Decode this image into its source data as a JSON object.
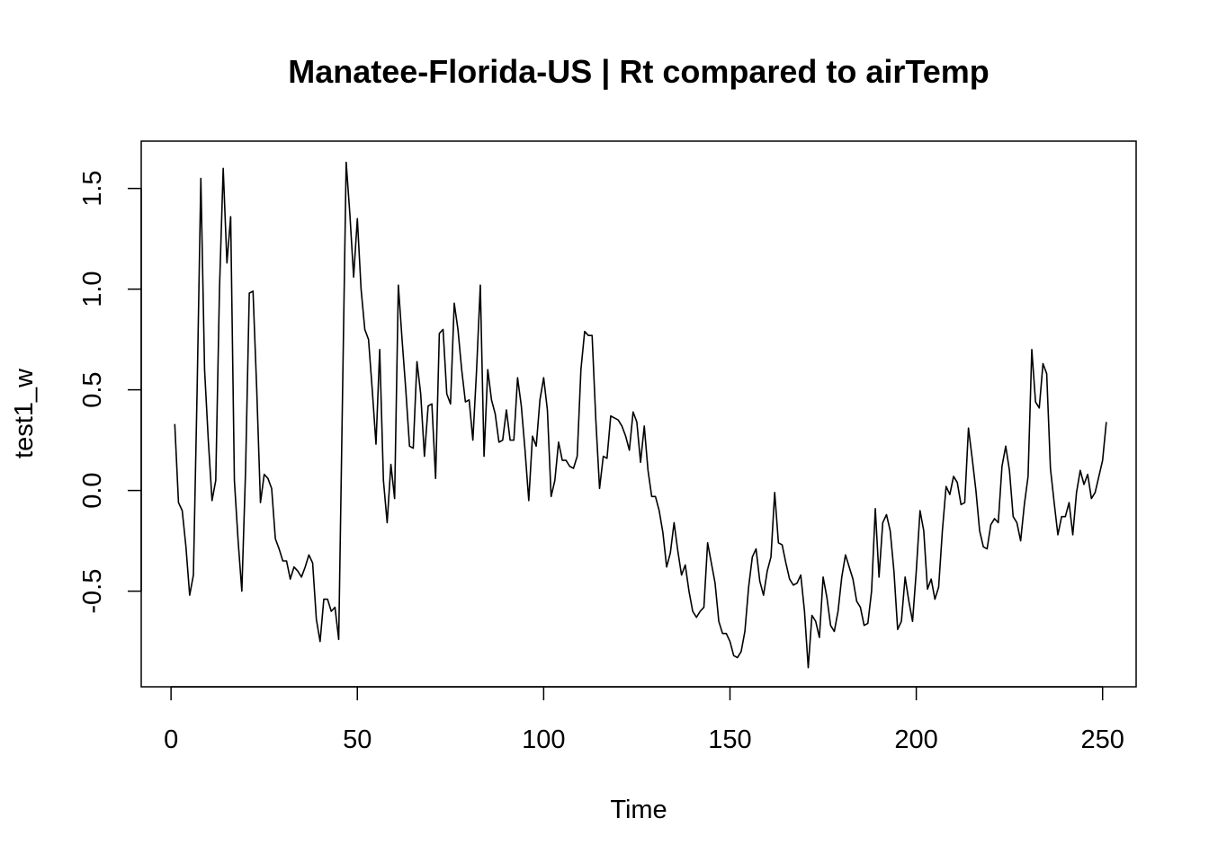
{
  "chart_data": {
    "type": "line",
    "title": "Manatee-Florida-US | Rt compared to airTemp",
    "xlabel": "Time",
    "ylabel": "test1_w",
    "xlim": [
      -8,
      259
    ],
    "ylim": [
      -0.975,
      1.735
    ],
    "xticks": [
      0,
      50,
      100,
      150,
      200,
      250
    ],
    "yticks": [
      -0.5,
      0.0,
      0.5,
      1.0,
      1.5
    ],
    "xtick_labels": [
      "0",
      "50",
      "100",
      "150",
      "200",
      "250"
    ],
    "ytick_labels": [
      "-0.5",
      "0.0",
      "0.5",
      "1.0",
      "1.5"
    ],
    "grid": false,
    "line_color": "#000000",
    "series": [
      {
        "x_start": 1,
        "values": [
          0.33,
          -0.06,
          -0.1,
          -0.28,
          -0.52,
          -0.42,
          0.5,
          1.55,
          0.6,
          0.25,
          -0.05,
          0.05,
          1.0,
          1.6,
          1.13,
          1.36,
          0.05,
          -0.25,
          -0.5,
          0.1,
          0.98,
          0.99,
          0.5,
          -0.06,
          0.08,
          0.06,
          0.01,
          -0.24,
          -0.29,
          -0.35,
          -0.35,
          -0.44,
          -0.38,
          -0.4,
          -0.43,
          -0.38,
          -0.32,
          -0.36,
          -0.64,
          -0.75,
          -0.54,
          -0.54,
          -0.6,
          -0.58,
          -0.74,
          0.45,
          1.63,
          1.37,
          1.06,
          1.35,
          1.0,
          0.8,
          0.75,
          0.5,
          0.23,
          0.7,
          0.05,
          -0.16,
          0.13,
          -0.04,
          1.02,
          0.75,
          0.5,
          0.22,
          0.21,
          0.64,
          0.48,
          0.17,
          0.42,
          0.43,
          0.06,
          0.78,
          0.8,
          0.48,
          0.43,
          0.93,
          0.8,
          0.6,
          0.44,
          0.45,
          0.25,
          0.6,
          1.02,
          0.17,
          0.6,
          0.45,
          0.38,
          0.24,
          0.25,
          0.4,
          0.25,
          0.25,
          0.56,
          0.42,
          0.2,
          -0.05,
          0.27,
          0.22,
          0.45,
          0.56,
          0.4,
          -0.03,
          0.05,
          0.24,
          0.15,
          0.15,
          0.12,
          0.11,
          0.17,
          0.6,
          0.79,
          0.77,
          0.77,
          0.35,
          0.01,
          0.17,
          0.16,
          0.37,
          0.36,
          0.35,
          0.32,
          0.27,
          0.2,
          0.39,
          0.34,
          0.14,
          0.32,
          0.1,
          -0.03,
          -0.03,
          -0.1,
          -0.21,
          -0.38,
          -0.31,
          -0.16,
          -0.3,
          -0.42,
          -0.37,
          -0.5,
          -0.6,
          -0.63,
          -0.6,
          -0.58,
          -0.26,
          -0.36,
          -0.46,
          -0.65,
          -0.71,
          -0.71,
          -0.75,
          -0.82,
          -0.83,
          -0.8,
          -0.7,
          -0.48,
          -0.33,
          -0.29,
          -0.45,
          -0.52,
          -0.4,
          -0.33,
          -0.01,
          -0.26,
          -0.27,
          -0.36,
          -0.44,
          -0.47,
          -0.46,
          -0.42,
          -0.6,
          -0.88,
          -0.62,
          -0.65,
          -0.73,
          -0.43,
          -0.53,
          -0.67,
          -0.7,
          -0.6,
          -0.43,
          -0.32,
          -0.38,
          -0.44,
          -0.55,
          -0.58,
          -0.67,
          -0.66,
          -0.5,
          -0.09,
          -0.43,
          -0.16,
          -0.12,
          -0.2,
          -0.4,
          -0.69,
          -0.65,
          -0.43,
          -0.55,
          -0.65,
          -0.4,
          -0.1,
          -0.2,
          -0.49,
          -0.44,
          -0.54,
          -0.48,
          -0.2,
          0.02,
          -0.02,
          0.07,
          0.04,
          -0.07,
          -0.06,
          0.31,
          0.16,
          0.0,
          -0.2,
          -0.28,
          -0.29,
          -0.17,
          -0.14,
          -0.16,
          0.12,
          0.22,
          0.1,
          -0.13,
          -0.16,
          -0.25,
          -0.07,
          0.07,
          0.7,
          0.44,
          0.41,
          0.63,
          0.58,
          0.11,
          -0.06,
          -0.22,
          -0.13,
          -0.13,
          -0.06,
          -0.22,
          -0.01,
          0.1,
          0.03,
          0.08,
          -0.04,
          -0.01,
          0.07,
          0.15,
          0.34
        ]
      }
    ]
  }
}
